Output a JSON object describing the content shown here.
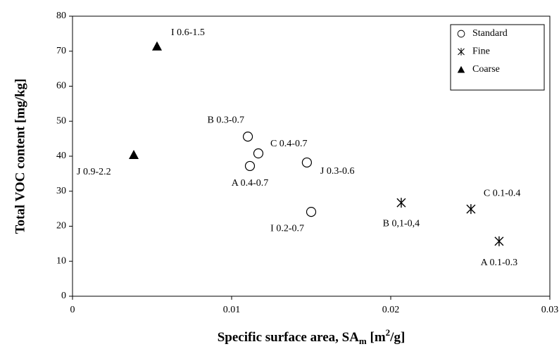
{
  "chart_data": {
    "type": "scatter",
    "ylabel": "Total VOC content [mg/kg]",
    "xlabel_parts": [
      "Specific surface area, SA",
      "m",
      " [m",
      "2",
      "/g]"
    ],
    "xlim": [
      0,
      0.03
    ],
    "xticks": [
      0,
      0.01,
      0.02,
      0.03
    ],
    "ylim": [
      0,
      80
    ],
    "yticks": [
      0,
      10,
      20,
      30,
      40,
      50,
      60,
      70,
      80
    ],
    "grid": false,
    "legend": "upper right",
    "series": [
      {
        "name": "Standard",
        "marker": "circle",
        "color": "#000000",
        "x": [
          0.01102,
          0.01168,
          0.01115,
          0.01473,
          0.015
        ],
        "values": [
          45.6,
          40.8,
          37.2,
          38.2,
          24.1
        ],
        "labels": [
          "B 0.3-0.7",
          "C 0.4-0.7",
          "A 0.4-0.7",
          "J 0.3-0.6",
          "I 0.2-0.7"
        ]
      },
      {
        "name": "Fine",
        "marker": "asterisk",
        "color": "#000000",
        "x": [
          0.02066,
          0.02504,
          0.02681
        ],
        "values": [
          26.7,
          24.9,
          15.7
        ],
        "labels": [
          "B 0,1-0,4",
          "C 0.1-0.4",
          "A 0.1-0.3"
        ]
      },
      {
        "name": "Coarse",
        "marker": "triangle",
        "color": "#000000",
        "x": [
          0.00531,
          0.00385
        ],
        "values": [
          71.4,
          40.4
        ],
        "labels": [
          "I 0.6-1.5",
          "J 0.9-2.2"
        ]
      }
    ]
  }
}
